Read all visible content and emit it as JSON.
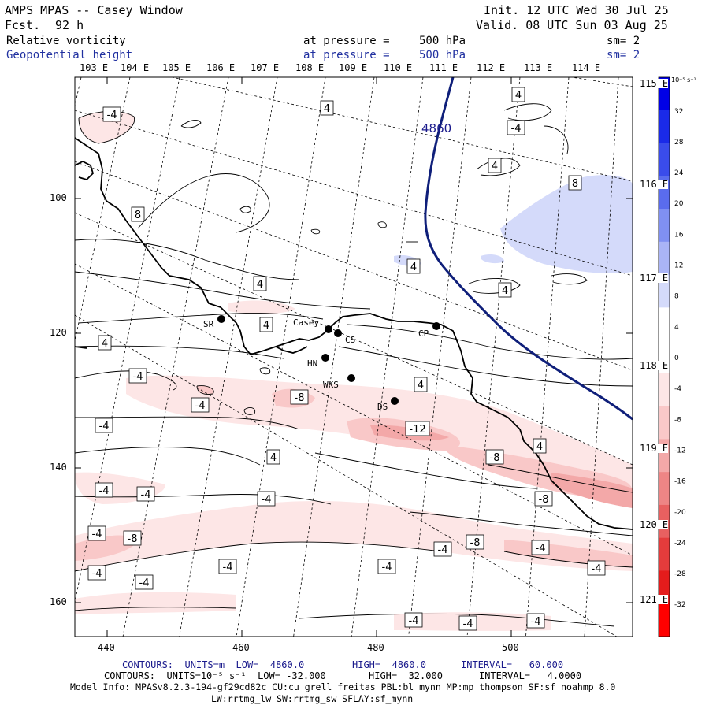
{
  "header": {
    "title": "AMPS MPAS -- Casey Window",
    "forecast_label": "Fcst.",
    "forecast_value": "92 h",
    "init": "Init. 12 UTC Wed 30 Jul 25",
    "valid": "Valid. 08 UTC Sun 03 Aug 25"
  },
  "fields": [
    {
      "name": "Relative vorticity",
      "level_label": "at pressure =",
      "level_value": "500 hPa",
      "smooth": "sm= 2"
    },
    {
      "name": "Geopotential height",
      "level_label": "at pressure =",
      "level_value": "500 hPa",
      "smooth": "sm= 2"
    }
  ],
  "top_longitudes": [
    "103 E",
    "104 E",
    "105 E",
    "106 E",
    "107 E",
    "108 E",
    "109 E",
    "110 E",
    "111 E",
    "112 E",
    "113 E",
    "114 E"
  ],
  "right_longitudes": [
    "115 E",
    "116 E",
    "117 E",
    "118 E",
    "119 E",
    "120 E",
    "121 E"
  ],
  "x_ticks": [
    "440",
    "460",
    "480",
    "500"
  ],
  "y_ticks": [
    "100",
    "120",
    "140",
    "160"
  ],
  "stations": [
    {
      "name": "SR"
    },
    {
      "name": "Casey"
    },
    {
      "name": "CS"
    },
    {
      "name": "HN"
    },
    {
      "name": "WKS"
    },
    {
      "name": "DS"
    },
    {
      "name": "CP"
    }
  ],
  "height_label": "4860",
  "contour_labels": [
    "-4",
    "4",
    "4",
    "-4",
    "4",
    "8",
    "8",
    "4",
    "4",
    "4",
    "4",
    "4",
    "-4",
    "4",
    "-8",
    "-4",
    "-4",
    "4",
    "-12",
    "4",
    "-8",
    "-4",
    "-4",
    "-8",
    "-4",
    "-4",
    "-8",
    "-4",
    "-8",
    "-4",
    "-4",
    "-4",
    "-4",
    "-4",
    "-4",
    "-4",
    "-4",
    "-4"
  ],
  "colorbar": {
    "unit": "10⁻⁵ s⁻¹",
    "labels": [
      "32",
      "28",
      "24",
      "20",
      "16",
      "12",
      "8",
      "4",
      "0",
      "-4",
      "-8",
      "-12",
      "-16",
      "-20",
      "-24",
      "-28",
      "-32"
    ],
    "colors": [
      "#0000e6",
      "#1a2ae8",
      "#3a4ceb",
      "#5a6cee",
      "#8090f2",
      "#aab4f6",
      "#d4dafa",
      "#ffffff",
      "#ffffff",
      "#fde6e6",
      "#f9c8c8",
      "#f3a8a8",
      "#ee8585",
      "#e86060",
      "#e43c3c",
      "#e41c1c",
      "#ff0000"
    ]
  },
  "footer": {
    "line1_a": "CONTOURS:  UNITS=m  LOW=  4860.0",
    "line1_b": "HIGH=  4860.0",
    "line1_c": "INTERVAL=   60.000",
    "line2_a": "CONTOURS:  UNITS=10⁻⁵ s⁻¹  LOW= -32.000",
    "line2_b": "HIGH=  32.000",
    "line2_c": "INTERVAL=   4.0000",
    "line3": "Model Info: MPASv8.2.3-194-gf29cd82c CU:cu_grell_freitas PBL:bl_mynn MP:mp_thompson SF:sf_noahmp 8.0",
    "line4": "LW:rrtmg_lw SW:rrtmg_sw SFLAY:sf_mynn"
  }
}
